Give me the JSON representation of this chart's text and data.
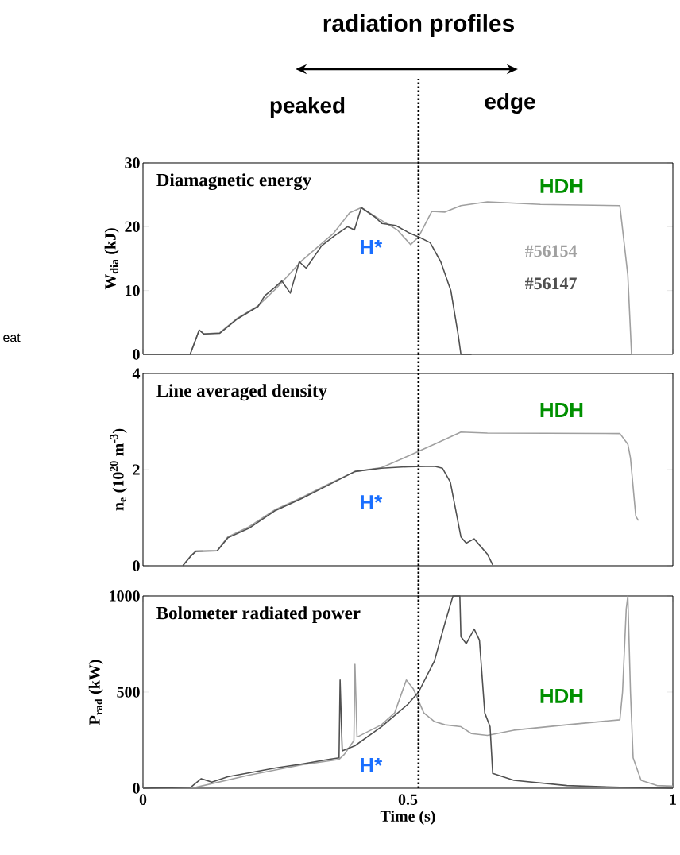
{
  "chart_data": [
    {
      "type": "line",
      "title": "Diamagnetic energy",
      "ylabel": "W$_{dia}$ (kJ)",
      "xlim": [
        0,
        1
      ],
      "ylim": [
        0,
        30
      ],
      "xticks": [
        0,
        0.5,
        1
      ],
      "yticks": [
        0,
        10,
        20,
        30
      ],
      "tick_labels": "y",
      "series": [
        {
          "name": "#56154",
          "color": "#a0a0a0",
          "x": [
            0,
            0.089,
            0.106,
            0.115,
            0.145,
            0.177,
            0.217,
            0.25,
            0.3,
            0.36,
            0.39,
            0.412,
            0.44,
            0.48,
            0.505,
            0.52,
            0.545,
            0.57,
            0.6,
            0.65,
            0.75,
            0.9,
            0.915,
            0.922,
            0.95,
            1
          ],
          "values": [
            0,
            0,
            3.8,
            3.2,
            3.4,
            5.6,
            7.6,
            10.2,
            14.7,
            19,
            22.2,
            23,
            21.5,
            19.5,
            17.2,
            18.4,
            22.4,
            22.3,
            23.3,
            23.9,
            23.5,
            23.3,
            12.4,
            0,
            0,
            0
          ]
        },
        {
          "name": "#56147",
          "color": "#505050",
          "x": [
            0,
            0.089,
            0.106,
            0.115,
            0.145,
            0.177,
            0.217,
            0.23,
            0.249,
            0.262,
            0.278,
            0.295,
            0.308,
            0.337,
            0.36,
            0.386,
            0.399,
            0.412,
            0.438,
            0.451,
            0.477,
            0.503,
            0.523,
            0.542,
            0.562,
            0.581,
            0.595,
            0.6,
            0.62
          ],
          "values": [
            0,
            0,
            3.8,
            3.2,
            3.3,
            5.5,
            7.5,
            9.2,
            10.5,
            11.5,
            9.6,
            14.5,
            13.5,
            17,
            18.5,
            20,
            19.5,
            23,
            21.5,
            20.5,
            20.2,
            19,
            18.3,
            17.5,
            14.5,
            10,
            3,
            0,
            0
          ]
        }
      ],
      "ref_lines": [
        {
          "axis": "x",
          "value": 0.52,
          "color": "#000000",
          "line_style": "dotted"
        }
      ],
      "annotations": [
        "radiation profiles",
        "peaked",
        "edge",
        "eat",
        "H*",
        "HDH"
      ]
    },
    {
      "type": "line",
      "title": "Line averaged density",
      "ylabel": "n$_{e}$ (10$^{20}$ m$^{-3}$)",
      "xlim": [
        0,
        1
      ],
      "ylim": [
        0,
        4
      ],
      "xticks": [
        0,
        0.5,
        1
      ],
      "yticks": [
        0,
        2,
        4
      ],
      "tick_labels": "y",
      "series": [
        {
          "color": "#a0a0a0",
          "x": [
            0.075,
            0.09,
            0.1,
            0.14,
            0.16,
            0.2,
            0.25,
            0.3,
            0.35,
            0.4,
            0.45,
            0.5,
            0.55,
            0.6,
            0.65,
            0.9,
            0.915,
            0.92,
            0.93,
            0.935
          ],
          "values": [
            0,
            0.2,
            0.31,
            0.31,
            0.6,
            0.81,
            1.17,
            1.42,
            1.7,
            1.96,
            2.04,
            2.28,
            2.53,
            2.78,
            2.76,
            2.75,
            2.53,
            2.24,
            1.03,
            0.94
          ]
        },
        {
          "color": "#505050",
          "x": [
            0.075,
            0.09,
            0.1,
            0.14,
            0.16,
            0.2,
            0.25,
            0.3,
            0.35,
            0.4,
            0.45,
            0.5,
            0.55,
            0.565,
            0.58,
            0.59,
            0.6,
            0.61,
            0.625,
            0.65,
            0.66
          ],
          "values": [
            0,
            0.2,
            0.3,
            0.31,
            0.58,
            0.78,
            1.15,
            1.4,
            1.68,
            1.96,
            2.03,
            2.06,
            2.07,
            2.03,
            1.74,
            1.17,
            0.6,
            0.47,
            0.56,
            0.24,
            0.02
          ]
        }
      ],
      "ref_lines": [
        {
          "axis": "x",
          "value": 0.52,
          "color": "#000000",
          "line_style": "dotted"
        }
      ],
      "annotations": [
        "H*",
        "HDH"
      ]
    },
    {
      "type": "line",
      "title": "Bolometer radiated power",
      "xlabel": "Time (s)",
      "ylabel": "P$_{rad}$ (kW)",
      "xlim": [
        0,
        1
      ],
      "ylim": [
        0,
        1000
      ],
      "xticks": [
        0,
        0.5,
        1
      ],
      "yticks": [
        0,
        500,
        1000
      ],
      "series": [
        {
          "color": "#a0a0a0",
          "x": [
            0,
            0.1,
            0.2,
            0.3,
            0.37,
            0.38,
            0.398,
            0.4,
            0.404,
            0.45,
            0.475,
            0.497,
            0.51,
            0.53,
            0.55,
            0.57,
            0.6,
            0.62,
            0.65,
            0.7,
            0.8,
            0.9,
            0.905,
            0.912,
            0.915,
            0.92,
            0.925,
            0.94,
            0.97,
            1
          ],
          "values": [
            0,
            5,
            68,
            122,
            150,
            176,
            248,
            644,
            266,
            330,
            392,
            563,
            518,
            392,
            347,
            330,
            320,
            284,
            275,
            302,
            330,
            356,
            500,
            932,
            1000,
            500,
            158,
            41,
            14,
            11
          ]
        },
        {
          "color": "#505050",
          "x": [
            0,
            0.09,
            0.11,
            0.13,
            0.16,
            0.25,
            0.3,
            0.35,
            0.37,
            0.372,
            0.376,
            0.4,
            0.45,
            0.5,
            0.52,
            0.55,
            0.57,
            0.585,
            0.598,
            0.6,
            0.61,
            0.625,
            0.635,
            0.645,
            0.655,
            0.66,
            0.7,
            0.8,
            0.9,
            1
          ],
          "values": [
            0,
            5,
            50,
            32,
            60,
            105,
            126,
            150,
            158,
            563,
            194,
            221,
            320,
            437,
            500,
            662,
            860,
            1000,
            1000,
            788,
            752,
            828,
            770,
            392,
            320,
            77,
            41,
            14,
            5,
            0
          ]
        }
      ],
      "ref_lines": [
        {
          "axis": "x",
          "value": 0.52,
          "color": "#000000",
          "line_style": "dotted"
        }
      ],
      "annotations": [
        "H*",
        "HDH"
      ]
    }
  ]
}
